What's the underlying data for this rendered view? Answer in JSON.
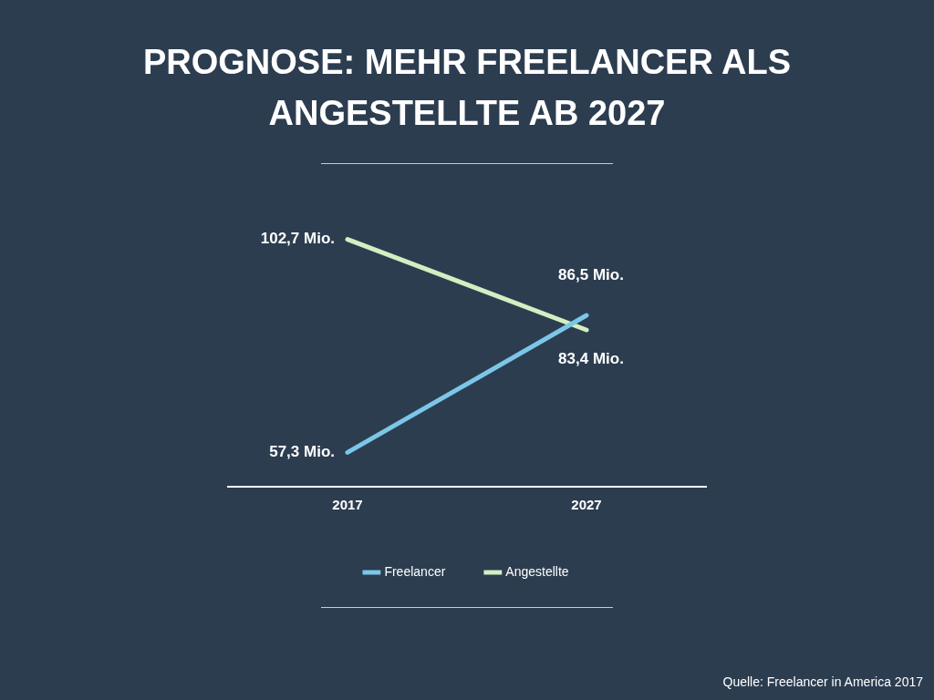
{
  "chart_data": {
    "type": "line",
    "title": "PROGNOSE: MEHR FREELANCER ALS ANGESTELLTE AB 2027",
    "categories": [
      "2017",
      "2027"
    ],
    "series": [
      {
        "name": "Freelancer",
        "color": "#7cc6e8",
        "values": [
          57.3,
          86.5
        ],
        "value_labels": [
          "57,3 Mio.",
          "86,5 Mio."
        ]
      },
      {
        "name": "Angestellte",
        "color": "#d3efc2",
        "values": [
          102.7,
          83.4
        ],
        "value_labels": [
          "102,7 Mio.",
          "83,4 Mio."
        ]
      }
    ],
    "grid": false,
    "legend": "bottom",
    "marker": "none",
    "line_style": "solid",
    "tick_labels": "x",
    "annotations": [
      "Quelle: Freelancer in America 2017"
    ]
  }
}
